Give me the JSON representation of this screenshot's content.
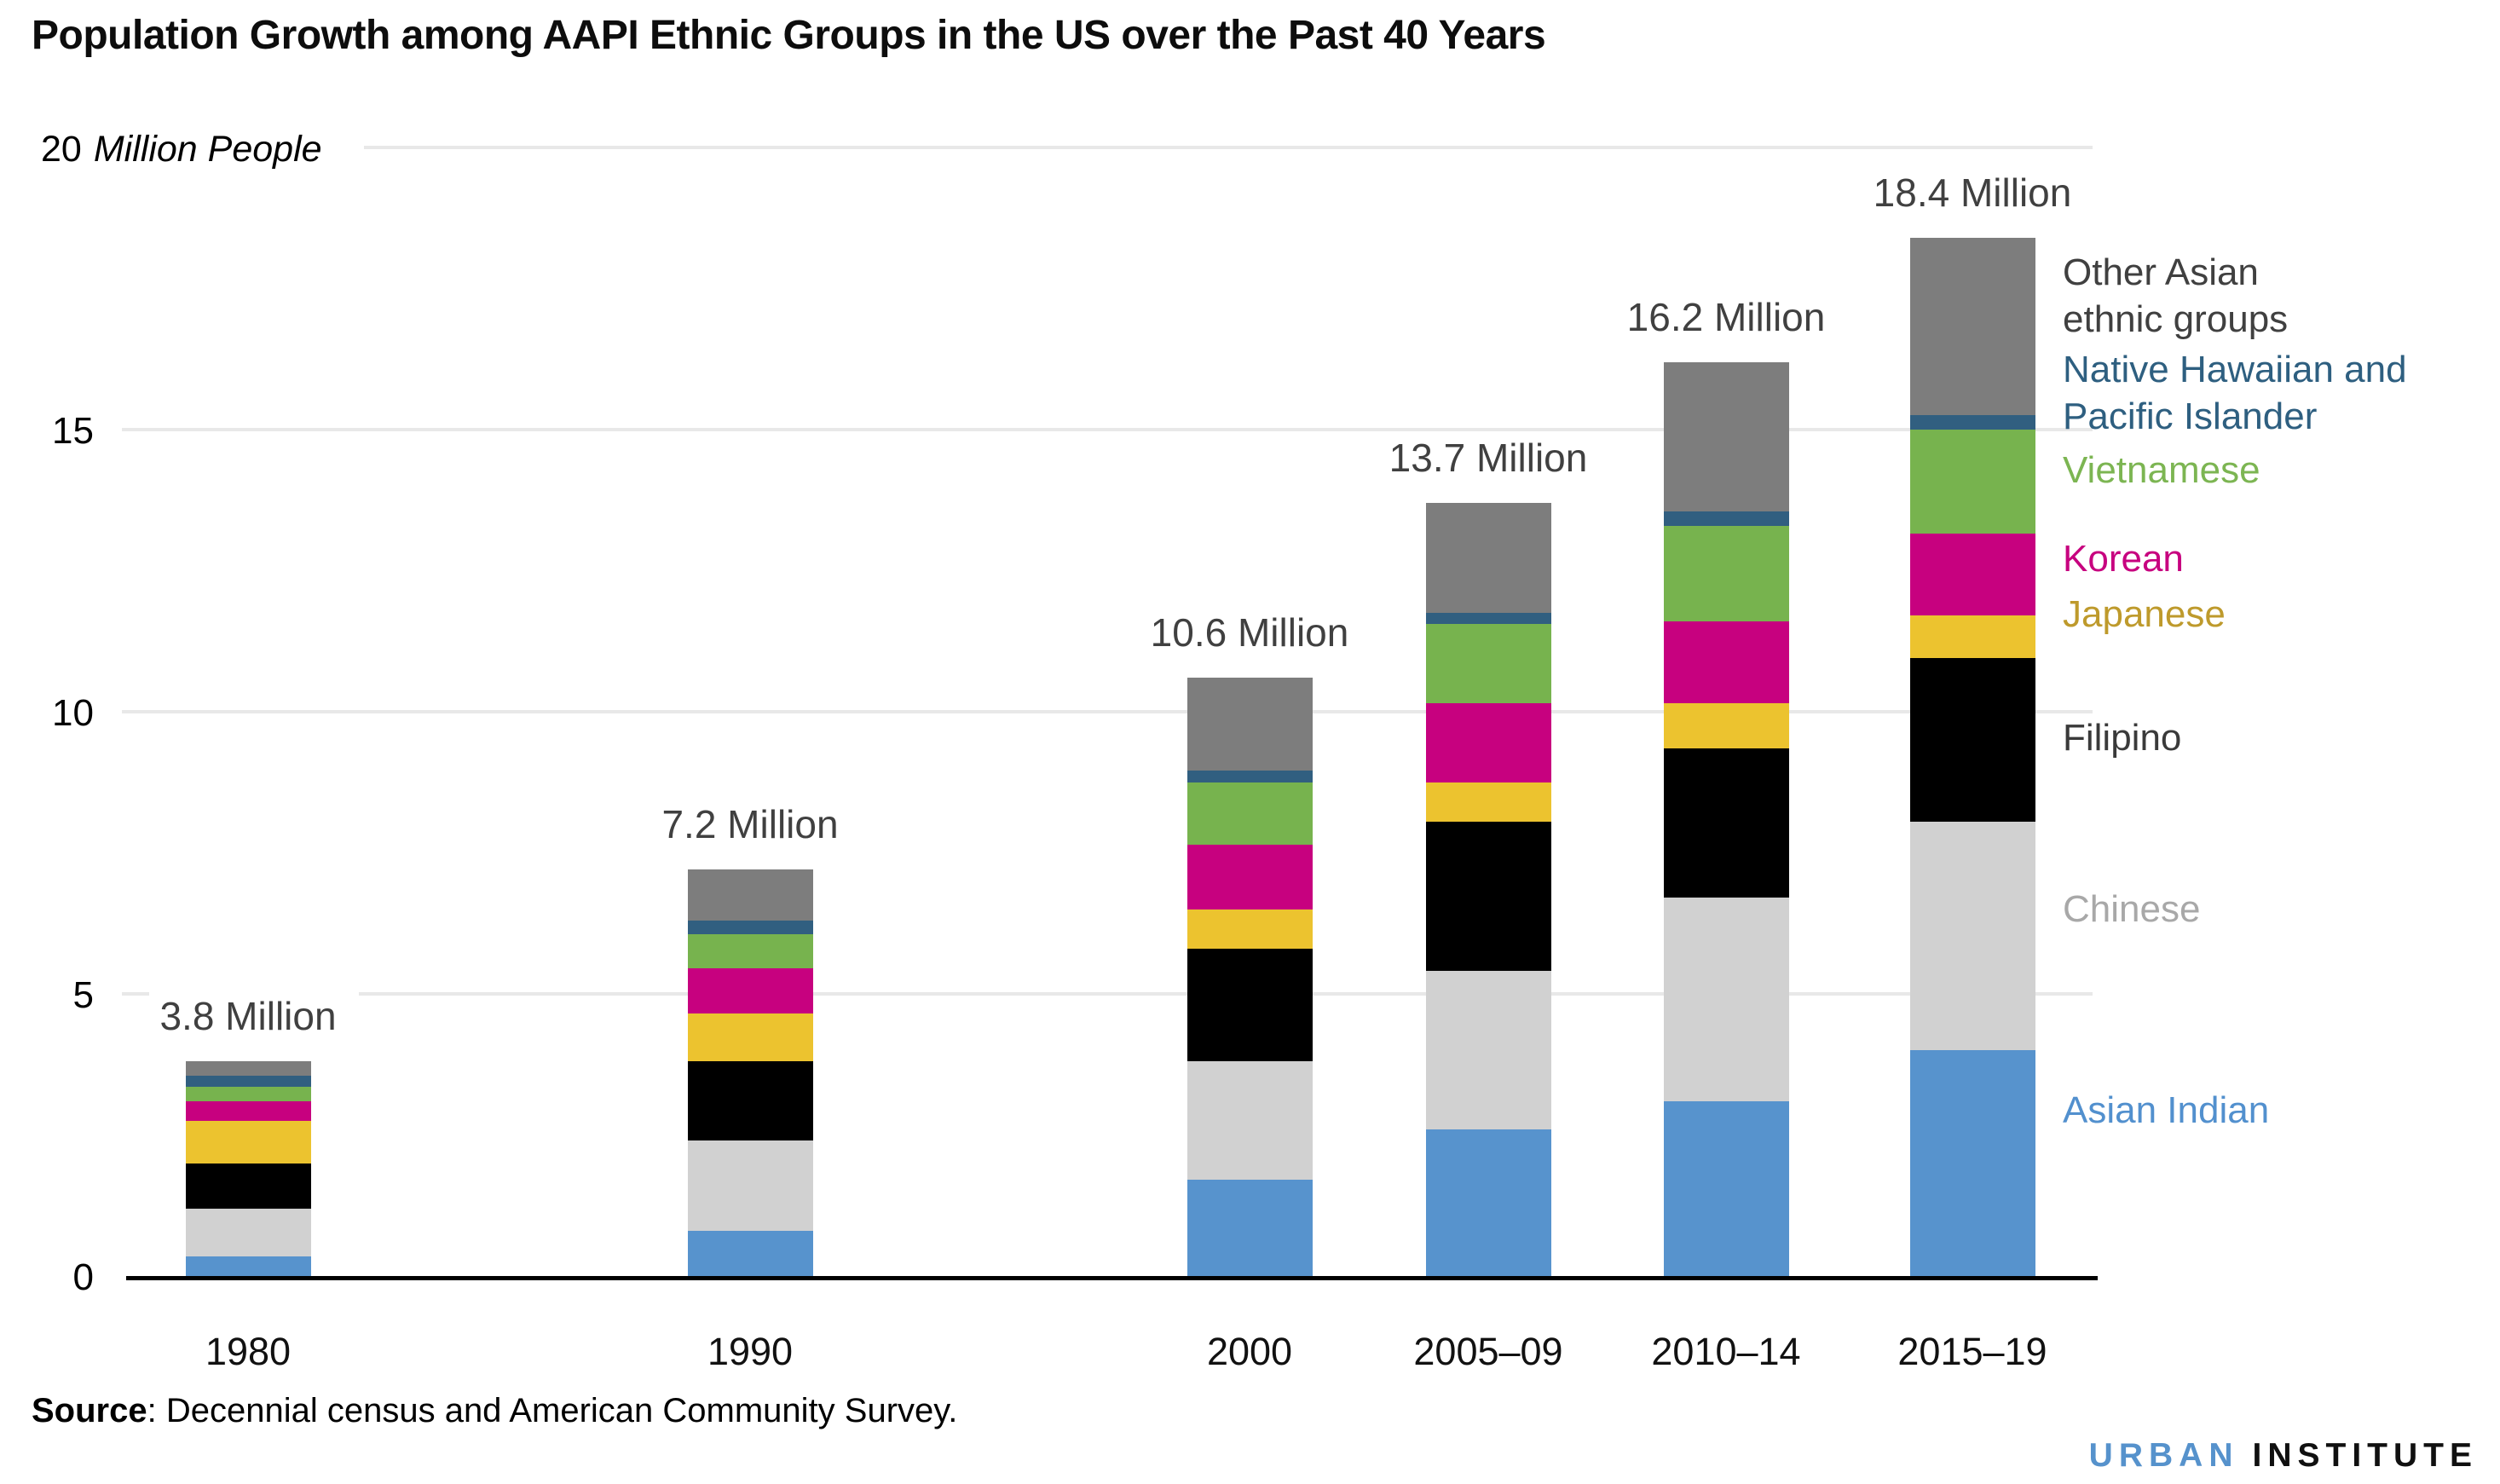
{
  "title": "Population Growth among AAPI Ethnic Groups in the US over the Past 40 Years",
  "y_axis": {
    "top_tick": "20",
    "unit": "Million People",
    "ticks": [
      {
        "value": 0,
        "label": "0"
      },
      {
        "value": 5,
        "label": "5"
      },
      {
        "value": 10,
        "label": "10"
      },
      {
        "value": 15,
        "label": "15"
      },
      {
        "value": 20,
        "label": "20"
      }
    ]
  },
  "chart_data": {
    "type": "bar",
    "stacked": true,
    "unit": "millions of people",
    "ylabel": "Million People",
    "ylim": [
      0,
      20
    ],
    "grid": true,
    "legend_position": "right",
    "categories": [
      "1980",
      "1990",
      "2000",
      "2005–09",
      "2010–14",
      "2015–19"
    ],
    "totals": [
      3.8,
      7.2,
      10.6,
      13.7,
      16.2,
      18.4
    ],
    "total_labels": [
      "3.8 Million",
      "7.2 Million",
      "10.6 Million",
      "13.7 Million",
      "16.2 Million",
      "18.4 Million"
    ],
    "series": [
      {
        "name": "Asian Indian",
        "color": "#5793CD",
        "values": [
          0.35,
          0.8,
          1.7,
          2.6,
          3.1,
          4.0
        ]
      },
      {
        "name": "Chinese",
        "color": "#D1D1D1",
        "values": [
          0.85,
          1.6,
          2.1,
          2.8,
          3.6,
          4.05
        ]
      },
      {
        "name": "Filipino",
        "color": "#000000",
        "values": [
          0.8,
          1.4,
          2.0,
          2.65,
          2.65,
          2.9
        ]
      },
      {
        "name": "Japanese",
        "color": "#ECC32F",
        "values": [
          0.75,
          0.85,
          0.7,
          0.7,
          0.8,
          0.75
        ]
      },
      {
        "name": "Korean",
        "color": "#C7017F",
        "values": [
          0.35,
          0.8,
          1.15,
          1.4,
          1.45,
          1.45
        ]
      },
      {
        "name": "Vietnamese",
        "color": "#77B34E",
        "values": [
          0.25,
          0.6,
          1.1,
          1.4,
          1.7,
          1.85
        ]
      },
      {
        "name": "Native Hawaiian and Pacific Islander",
        "color": "#315F80",
        "values": [
          0.2,
          0.25,
          0.2,
          0.2,
          0.25,
          0.25
        ]
      },
      {
        "name": "Other Asian ethnic groups",
        "color": "#7D7D7D",
        "values": [
          0.25,
          0.9,
          1.65,
          1.95,
          2.65,
          3.15
        ]
      }
    ]
  },
  "legend": {
    "items": [
      {
        "lines": [
          "Other Asian",
          "ethnic groups"
        ],
        "color": "#404040"
      },
      {
        "lines": [
          "Native Hawaiian and",
          "Pacific Islander"
        ],
        "color": "#2E5F80"
      },
      {
        "lines": [
          "Vietnamese"
        ],
        "color": "#7CB552"
      },
      {
        "lines": [
          "Korean"
        ],
        "color": "#C7017F"
      },
      {
        "lines": [
          "Japanese"
        ],
        "color": "#BE9A2C"
      },
      {
        "lines": [
          "Filipino"
        ],
        "color": "#3A3A3A"
      },
      {
        "lines": [
          "Chinese"
        ],
        "color": "#A8A8A8"
      },
      {
        "lines": [
          "Asian Indian"
        ],
        "color": "#5290CE"
      }
    ]
  },
  "source": {
    "label": "Source",
    "text": ": Decennial census and American Community Survey."
  },
  "logo": {
    "urban": "URBAN",
    "institute": "INSTITUTE"
  }
}
